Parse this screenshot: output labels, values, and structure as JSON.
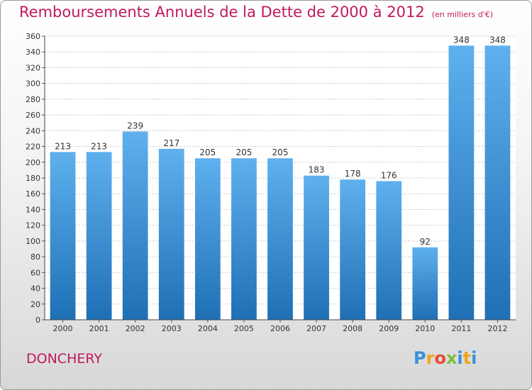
{
  "title": "Remboursements Annuels de la Dette de 2000 à 2012",
  "subtitle": "(en milliers d'€)",
  "commune": "DONCHERY",
  "logo": {
    "letters": [
      "P",
      "r",
      "o",
      "x",
      "i",
      "t",
      "i"
    ],
    "colors": [
      "#3a8fd9",
      "#f2a21b",
      "#e94b35",
      "#7bbf3a",
      "#3a8fd9",
      "#f2a21b",
      "#3a8fd9"
    ]
  },
  "colors": {
    "title": "#c0195e",
    "bar_top": "#5fb0ee",
    "bar_bottom": "#1f6fb5"
  },
  "chart_data": {
    "type": "bar",
    "categories": [
      "2000",
      "2001",
      "2002",
      "2003",
      "2004",
      "2005",
      "2006",
      "2007",
      "2008",
      "2009",
      "2010",
      "2011",
      "2012"
    ],
    "values": [
      213,
      213,
      239,
      217,
      205,
      205,
      205,
      183,
      178,
      176,
      92,
      348,
      348
    ],
    "ylim": [
      0,
      360
    ],
    "yticks": [
      0,
      20,
      40,
      60,
      80,
      100,
      120,
      140,
      160,
      180,
      200,
      220,
      240,
      260,
      280,
      300,
      320,
      340,
      360
    ],
    "grid": true,
    "xlabel": "",
    "ylabel": ""
  }
}
